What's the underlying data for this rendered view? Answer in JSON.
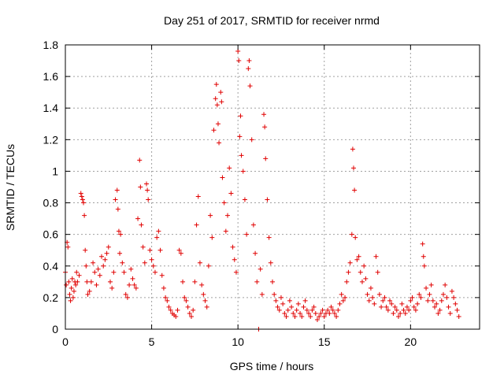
{
  "chart_data": {
    "type": "scatter",
    "title": "Day 251 of 2017, SRMTID for receiver nrmd",
    "xlabel": "GPS time / hours",
    "ylabel": "SRMTID / TECUs",
    "xlim": [
      0,
      24
    ],
    "ylim": [
      0,
      1.8
    ],
    "xticks": [
      0,
      5,
      10,
      15,
      20
    ],
    "xtick_labels": [
      "0",
      "5",
      "10",
      "15",
      "20"
    ],
    "yticks": [
      0,
      0.2,
      0.4,
      0.6,
      0.8,
      1.0,
      1.2,
      1.4,
      1.6,
      1.8
    ],
    "ytick_labels": [
      "0",
      "0.2",
      "0.4",
      "0.6",
      "0.8",
      "1",
      "1.2",
      "1.4",
      "1.6",
      "1.8"
    ],
    "grid": true,
    "marker": "+",
    "color": "#e00000",
    "series": [
      {
        "name": "SRMTID",
        "points": [
          [
            0.0,
            0.36
          ],
          [
            0.05,
            0.28
          ],
          [
            0.1,
            0.55
          ],
          [
            0.15,
            0.52
          ],
          [
            0.2,
            0.3
          ],
          [
            0.25,
            0.22
          ],
          [
            0.3,
            0.18
          ],
          [
            0.35,
            0.26
          ],
          [
            0.4,
            0.32
          ],
          [
            0.45,
            0.2
          ],
          [
            0.5,
            0.24
          ],
          [
            0.55,
            0.3
          ],
          [
            0.6,
            0.28
          ],
          [
            0.65,
            0.36
          ],
          [
            0.7,
            0.3
          ],
          [
            0.8,
            0.34
          ],
          [
            0.9,
            0.86
          ],
          [
            0.95,
            0.84
          ],
          [
            1.0,
            0.82
          ],
          [
            1.05,
            0.8
          ],
          [
            1.1,
            0.72
          ],
          [
            1.15,
            0.5
          ],
          [
            1.2,
            0.4
          ],
          [
            1.25,
            0.3
          ],
          [
            1.3,
            0.22
          ],
          [
            1.4,
            0.24
          ],
          [
            1.5,
            0.3
          ],
          [
            1.6,
            0.42
          ],
          [
            1.7,
            0.36
          ],
          [
            1.8,
            0.28
          ],
          [
            1.9,
            0.38
          ],
          [
            2.0,
            0.34
          ],
          [
            2.1,
            0.46
          ],
          [
            2.2,
            0.4
          ],
          [
            2.3,
            0.44
          ],
          [
            2.4,
            0.48
          ],
          [
            2.5,
            0.52
          ],
          [
            2.6,
            0.3
          ],
          [
            2.7,
            0.26
          ],
          [
            2.8,
            0.36
          ],
          [
            2.9,
            0.82
          ],
          [
            3.0,
            0.88
          ],
          [
            3.05,
            0.76
          ],
          [
            3.1,
            0.62
          ],
          [
            3.15,
            0.48
          ],
          [
            3.2,
            0.6
          ],
          [
            3.3,
            0.42
          ],
          [
            3.4,
            0.36
          ],
          [
            3.5,
            0.22
          ],
          [
            3.6,
            0.2
          ],
          [
            3.7,
            0.28
          ],
          [
            3.8,
            0.38
          ],
          [
            3.9,
            0.32
          ],
          [
            4.0,
            0.28
          ],
          [
            4.1,
            0.26
          ],
          [
            4.2,
            0.7
          ],
          [
            4.3,
            1.07
          ],
          [
            4.35,
            0.9
          ],
          [
            4.4,
            0.66
          ],
          [
            4.5,
            0.52
          ],
          [
            4.6,
            0.42
          ],
          [
            4.7,
            0.92
          ],
          [
            4.75,
            0.88
          ],
          [
            4.8,
            0.82
          ],
          [
            4.9,
            0.5
          ],
          [
            5.0,
            0.44
          ],
          [
            5.1,
            0.4
          ],
          [
            5.2,
            0.36
          ],
          [
            5.3,
            0.58
          ],
          [
            5.4,
            0.62
          ],
          [
            5.5,
            0.5
          ],
          [
            5.6,
            0.34
          ],
          [
            5.7,
            0.26
          ],
          [
            5.8,
            0.2
          ],
          [
            5.9,
            0.18
          ],
          [
            6.0,
            0.14
          ],
          [
            6.1,
            0.12
          ],
          [
            6.2,
            0.1
          ],
          [
            6.3,
            0.09
          ],
          [
            6.4,
            0.08
          ],
          [
            6.5,
            0.12
          ],
          [
            6.6,
            0.5
          ],
          [
            6.7,
            0.48
          ],
          [
            6.8,
            0.3
          ],
          [
            6.9,
            0.2
          ],
          [
            7.0,
            0.18
          ],
          [
            7.1,
            0.14
          ],
          [
            7.2,
            0.1
          ],
          [
            7.3,
            0.08
          ],
          [
            7.4,
            0.12
          ],
          [
            7.5,
            0.3
          ],
          [
            7.6,
            0.66
          ],
          [
            7.7,
            0.84
          ],
          [
            7.8,
            0.42
          ],
          [
            7.9,
            0.28
          ],
          [
            8.0,
            0.22
          ],
          [
            8.1,
            0.18
          ],
          [
            8.2,
            0.14
          ],
          [
            8.3,
            0.4
          ],
          [
            8.4,
            0.72
          ],
          [
            8.5,
            0.58
          ],
          [
            8.6,
            1.26
          ],
          [
            8.7,
            1.46
          ],
          [
            8.75,
            1.55
          ],
          [
            8.8,
            1.42
          ],
          [
            8.85,
            1.3
          ],
          [
            8.9,
            1.18
          ],
          [
            9.0,
            1.5
          ],
          [
            9.05,
            1.44
          ],
          [
            9.1,
            0.96
          ],
          [
            9.2,
            0.8
          ],
          [
            9.3,
            0.62
          ],
          [
            9.4,
            0.72
          ],
          [
            9.5,
            1.02
          ],
          [
            9.6,
            0.86
          ],
          [
            9.7,
            0.52
          ],
          [
            9.8,
            0.44
          ],
          [
            9.9,
            0.36
          ],
          [
            10.0,
            1.76
          ],
          [
            10.05,
            1.7
          ],
          [
            10.1,
            1.22
          ],
          [
            10.15,
            1.35
          ],
          [
            10.2,
            1.1
          ],
          [
            10.3,
            1.0
          ],
          [
            10.4,
            0.82
          ],
          [
            10.5,
            0.6
          ],
          [
            10.6,
            1.65
          ],
          [
            10.65,
            1.7
          ],
          [
            10.7,
            1.54
          ],
          [
            10.8,
            1.2
          ],
          [
            10.9,
            0.66
          ],
          [
            11.0,
            0.48
          ],
          [
            11.1,
            0.3
          ],
          [
            11.2,
            0.0
          ],
          [
            11.3,
            0.38
          ],
          [
            11.4,
            0.22
          ],
          [
            11.5,
            1.36
          ],
          [
            11.55,
            1.28
          ],
          [
            11.6,
            1.08
          ],
          [
            11.7,
            0.82
          ],
          [
            11.8,
            0.58
          ],
          [
            11.9,
            0.42
          ],
          [
            12.0,
            0.3
          ],
          [
            12.1,
            0.22
          ],
          [
            12.2,
            0.18
          ],
          [
            12.3,
            0.14
          ],
          [
            12.4,
            0.12
          ],
          [
            12.5,
            0.2
          ],
          [
            12.6,
            0.16
          ],
          [
            12.7,
            0.1
          ],
          [
            12.8,
            0.08
          ],
          [
            12.9,
            0.12
          ],
          [
            13.0,
            0.18
          ],
          [
            13.1,
            0.14
          ],
          [
            13.2,
            0.1
          ],
          [
            13.3,
            0.08
          ],
          [
            13.4,
            0.12
          ],
          [
            13.5,
            0.16
          ],
          [
            13.6,
            0.1
          ],
          [
            13.7,
            0.08
          ],
          [
            13.8,
            0.14
          ],
          [
            13.9,
            0.18
          ],
          [
            14.0,
            0.12
          ],
          [
            14.1,
            0.1
          ],
          [
            14.2,
            0.08
          ],
          [
            14.3,
            0.12
          ],
          [
            14.4,
            0.14
          ],
          [
            14.5,
            0.1
          ],
          [
            14.6,
            0.06
          ],
          [
            14.7,
            0.08
          ],
          [
            14.8,
            0.1
          ],
          [
            14.9,
            0.12
          ],
          [
            15.0,
            0.08
          ],
          [
            15.1,
            0.1
          ],
          [
            15.2,
            0.12
          ],
          [
            15.3,
            0.1
          ],
          [
            15.4,
            0.14
          ],
          [
            15.5,
            0.12
          ],
          [
            15.6,
            0.1
          ],
          [
            15.7,
            0.08
          ],
          [
            15.8,
            0.12
          ],
          [
            15.9,
            0.16
          ],
          [
            16.0,
            0.22
          ],
          [
            16.1,
            0.18
          ],
          [
            16.2,
            0.2
          ],
          [
            16.3,
            0.3
          ],
          [
            16.4,
            0.36
          ],
          [
            16.5,
            0.42
          ],
          [
            16.6,
            0.6
          ],
          [
            16.65,
            1.14
          ],
          [
            16.7,
            1.02
          ],
          [
            16.75,
            0.88
          ],
          [
            16.8,
            0.58
          ],
          [
            16.9,
            0.44
          ],
          [
            17.0,
            0.46
          ],
          [
            17.1,
            0.36
          ],
          [
            17.2,
            0.3
          ],
          [
            17.3,
            0.4
          ],
          [
            17.4,
            0.32
          ],
          [
            17.5,
            0.22
          ],
          [
            17.6,
            0.18
          ],
          [
            17.7,
            0.26
          ],
          [
            17.8,
            0.2
          ],
          [
            17.9,
            0.16
          ],
          [
            18.0,
            0.46
          ],
          [
            18.1,
            0.36
          ],
          [
            18.2,
            0.22
          ],
          [
            18.3,
            0.14
          ],
          [
            18.4,
            0.18
          ],
          [
            18.5,
            0.2
          ],
          [
            18.6,
            0.14
          ],
          [
            18.7,
            0.12
          ],
          [
            18.8,
            0.18
          ],
          [
            18.9,
            0.16
          ],
          [
            19.0,
            0.1
          ],
          [
            19.1,
            0.14
          ],
          [
            19.2,
            0.12
          ],
          [
            19.3,
            0.08
          ],
          [
            19.4,
            0.1
          ],
          [
            19.5,
            0.16
          ],
          [
            19.6,
            0.12
          ],
          [
            19.7,
            0.1
          ],
          [
            19.8,
            0.14
          ],
          [
            19.9,
            0.12
          ],
          [
            20.0,
            0.18
          ],
          [
            20.1,
            0.2
          ],
          [
            20.2,
            0.14
          ],
          [
            20.3,
            0.12
          ],
          [
            20.4,
            0.16
          ],
          [
            20.5,
            0.22
          ],
          [
            20.6,
            0.2
          ],
          [
            20.7,
            0.54
          ],
          [
            20.75,
            0.46
          ],
          [
            20.8,
            0.4
          ],
          [
            20.9,
            0.26
          ],
          [
            21.0,
            0.18
          ],
          [
            21.1,
            0.22
          ],
          [
            21.2,
            0.28
          ],
          [
            21.3,
            0.18
          ],
          [
            21.4,
            0.14
          ],
          [
            21.5,
            0.16
          ],
          [
            21.6,
            0.1
          ],
          [
            21.7,
            0.12
          ],
          [
            21.8,
            0.18
          ],
          [
            21.9,
            0.22
          ],
          [
            22.0,
            0.28
          ],
          [
            22.1,
            0.2
          ],
          [
            22.2,
            0.14
          ],
          [
            22.3,
            0.1
          ],
          [
            22.4,
            0.24
          ],
          [
            22.5,
            0.2
          ],
          [
            22.6,
            0.16
          ],
          [
            22.7,
            0.12
          ],
          [
            22.8,
            0.08
          ]
        ]
      }
    ]
  }
}
